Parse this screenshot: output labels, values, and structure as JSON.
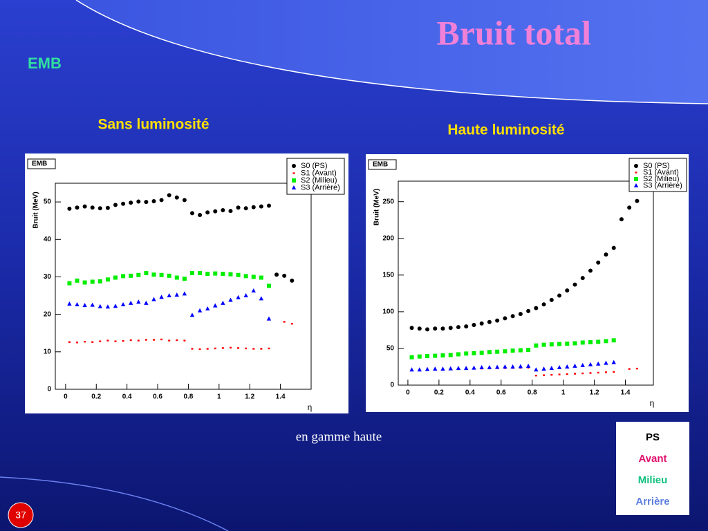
{
  "slide": {
    "title": "Bruit total",
    "section": "EMB",
    "caption": "en gamme haute",
    "page": "37",
    "legend": [
      "PS",
      "Avant",
      "Milieu",
      "Arrière"
    ]
  },
  "chart_data": [
    {
      "type": "scatter",
      "subtitle": "Sans luminosité",
      "stat_box": "EMB",
      "ylabel": "Bruit (MeV)",
      "xlabel": "η",
      "x": [
        0.025,
        0.075,
        0.125,
        0.175,
        0.225,
        0.275,
        0.325,
        0.375,
        0.425,
        0.475,
        0.525,
        0.575,
        0.625,
        0.675,
        0.725,
        0.775,
        0.825,
        0.875,
        0.925,
        0.975,
        1.025,
        1.075,
        1.125,
        1.175,
        1.225,
        1.275,
        1.325,
        1.375,
        1.425,
        1.475
      ],
      "xlim": [
        -0.067,
        1.6
      ],
      "xticks": [
        0,
        0.2,
        0.4,
        0.6,
        0.8,
        1,
        1.2,
        1.4
      ],
      "ylim": [
        0,
        55
      ],
      "yticks": [
        0,
        10,
        20,
        30,
        40,
        50
      ],
      "series": [
        {
          "name": "S0 (PS)",
          "color": "#000000",
          "marker": "circle",
          "values": [
            48.2,
            48.5,
            48.8,
            48.5,
            48.3,
            48.4,
            49.2,
            49.5,
            49.8,
            50.1,
            50.0,
            50.2,
            50.5,
            51.8,
            51.2,
            50.5,
            47.0,
            46.5,
            47.2,
            47.5,
            47.8,
            47.6,
            48.5,
            48.3,
            48.6,
            48.8,
            49.0,
            30.6,
            30.3,
            29.0
          ]
        },
        {
          "name": "S1 (Avant)",
          "color": "#ff0000",
          "marker": "dot",
          "values": [
            12.6,
            12.5,
            12.7,
            12.6,
            12.8,
            13.0,
            12.8,
            12.9,
            13.1,
            13.0,
            13.2,
            13.2,
            13.3,
            13.0,
            13.1,
            13.0,
            10.8,
            10.7,
            10.8,
            10.9,
            11.0,
            11.1,
            11.0,
            10.9,
            10.8,
            10.8,
            10.9,
            null,
            18.0,
            17.5
          ]
        },
        {
          "name": "S2 (Milieu)",
          "color": "#00ee00",
          "marker": "square",
          "values": [
            28.3,
            29.0,
            28.5,
            28.7,
            28.8,
            29.3,
            29.8,
            30.2,
            30.3,
            30.5,
            31.0,
            30.6,
            30.5,
            30.3,
            29.8,
            29.5,
            31.0,
            31.0,
            30.8,
            30.9,
            30.8,
            30.7,
            30.5,
            30.2,
            30.0,
            29.8,
            27.6,
            null,
            null,
            null
          ]
        },
        {
          "name": "S3 (Arrière)",
          "color": "#0000ff",
          "marker": "triangle",
          "values": [
            22.8,
            22.6,
            22.4,
            22.5,
            22.1,
            22.0,
            22.2,
            22.6,
            23.0,
            23.3,
            23.0,
            24.0,
            24.6,
            25.0,
            25.2,
            25.5,
            19.8,
            21.0,
            21.5,
            22.3,
            23.0,
            23.8,
            24.5,
            25.0,
            26.3,
            24.2,
            18.8,
            null,
            null,
            null
          ]
        }
      ]
    },
    {
      "type": "scatter",
      "subtitle": "Haute luminosité",
      "stat_box": "EMB",
      "ylabel": "Bruit (MeV)",
      "xlabel": "η",
      "x": [
        0.025,
        0.075,
        0.125,
        0.175,
        0.225,
        0.275,
        0.325,
        0.375,
        0.425,
        0.475,
        0.525,
        0.575,
        0.625,
        0.675,
        0.725,
        0.775,
        0.825,
        0.875,
        0.925,
        0.975,
        1.025,
        1.075,
        1.125,
        1.175,
        1.225,
        1.275,
        1.325,
        1.375,
        1.425,
        1.475
      ],
      "xlim": [
        -0.062,
        1.58
      ],
      "xticks": [
        0,
        0.2,
        0.4,
        0.6,
        0.8,
        1,
        1.2,
        1.4
      ],
      "ylim": [
        0,
        278
      ],
      "yticks": [
        0,
        50,
        100,
        150,
        200,
        250
      ],
      "series": [
        {
          "name": "S0 (PS)",
          "color": "#000000",
          "marker": "circle",
          "values": [
            78,
            77,
            76,
            77,
            77,
            78,
            79,
            80,
            82,
            84,
            86,
            88,
            91,
            94,
            97,
            101,
            105,
            110,
            116,
            122,
            129,
            137,
            146,
            156,
            167,
            178,
            187,
            226,
            242,
            251
          ]
        },
        {
          "name": "S1 (Avant)",
          "color": "#ff0000",
          "marker": "dot",
          "values": [
            20,
            20.3,
            20.6,
            20.9,
            21.2,
            21.5,
            21.8,
            22.0,
            22.3,
            22.5,
            22.7,
            23.0,
            23.2,
            23.4,
            23.6,
            23.8,
            13.0,
            13.5,
            14.0,
            14.5,
            15.0,
            15.5,
            16.0,
            16.5,
            17.0,
            17.5,
            18.0,
            null,
            22,
            22.5
          ]
        },
        {
          "name": "S2 (Milieu)",
          "color": "#00ee00",
          "marker": "square",
          "values": [
            38,
            39,
            39.5,
            40,
            40.5,
            41,
            42,
            43,
            43.5,
            44,
            45,
            45.5,
            46,
            47,
            47.5,
            48,
            54,
            55,
            55.5,
            56,
            56.5,
            57,
            58,
            58.5,
            59,
            60,
            61,
            null,
            null,
            null
          ]
        },
        {
          "name": "S3 (Arrière)",
          "color": "#0000ff",
          "marker": "triangle",
          "values": [
            21,
            21,
            21.5,
            22,
            22,
            22.5,
            23,
            23,
            23.5,
            24,
            24,
            24.5,
            25,
            25,
            25.5,
            26,
            21,
            22,
            23,
            24,
            25,
            26,
            27,
            28,
            29,
            30,
            31,
            null,
            null,
            null
          ]
        }
      ]
    }
  ]
}
